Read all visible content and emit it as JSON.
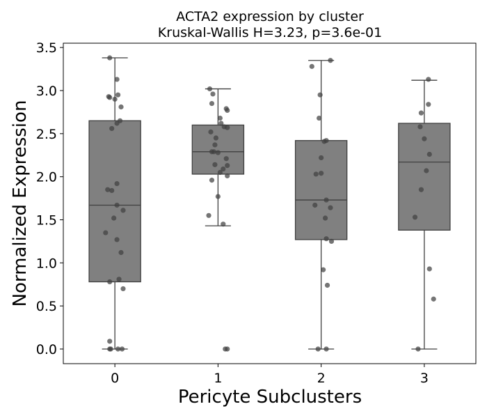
{
  "chart_data": {
    "type": "box",
    "title": "ACTA2 expression by cluster",
    "subtitle": "Kruskal-Wallis H=3.23, p=3.6e-01",
    "xlabel": "Pericyte Subclusters",
    "ylabel": "Normalized Expression",
    "categories": [
      "0",
      "1",
      "2",
      "3"
    ],
    "ylim": [
      -0.17,
      3.55
    ],
    "yticks": [
      0.0,
      0.5,
      1.0,
      1.5,
      2.0,
      2.5,
      3.0,
      3.5
    ],
    "ytick_labels": [
      "0.0",
      "0.5",
      "1.0",
      "1.5",
      "2.0",
      "2.5",
      "3.0",
      "3.5"
    ],
    "grid": false,
    "colors": {
      "box_fill": "#808080",
      "box_edge": "#3f3f3f",
      "point": "#404040"
    },
    "boxes": [
      {
        "category": "0",
        "whisker_low": 0.0,
        "q1": 0.78,
        "median": 1.67,
        "q3": 2.65,
        "whisker_high": 3.38
      },
      {
        "category": "1",
        "whisker_low": 1.43,
        "q1": 2.03,
        "median": 2.29,
        "q3": 2.6,
        "whisker_high": 3.02
      },
      {
        "category": "2",
        "whisker_low": 0.0,
        "q1": 1.27,
        "median": 1.73,
        "q3": 2.42,
        "whisker_high": 3.35
      },
      {
        "category": "3",
        "whisker_low": 0.0,
        "q1": 1.38,
        "median": 2.17,
        "q3": 2.62,
        "whisker_high": 3.12
      }
    ],
    "points": [
      {
        "category": "0",
        "values": [
          {
            "x": -0.05,
            "y": 3.38
          },
          {
            "x": 0.02,
            "y": 3.13
          },
          {
            "x": -0.06,
            "y": 2.93
          },
          {
            "x": 0.03,
            "y": 2.95
          },
          {
            "x": -0.05,
            "y": 2.92
          },
          {
            "x": 0.0,
            "y": 2.9
          },
          {
            "x": 0.06,
            "y": 2.81
          },
          {
            "x": 0.05,
            "y": 2.65
          },
          {
            "x": 0.02,
            "y": 2.62
          },
          {
            "x": -0.03,
            "y": 2.56
          },
          {
            "x": -0.07,
            "y": 1.85
          },
          {
            "x": -0.03,
            "y": 1.84
          },
          {
            "x": 0.02,
            "y": 1.92
          },
          {
            "x": 0.02,
            "y": 1.67
          },
          {
            "x": 0.08,
            "y": 1.61
          },
          {
            "x": -0.01,
            "y": 1.52
          },
          {
            "x": -0.09,
            "y": 1.35
          },
          {
            "x": 0.02,
            "y": 1.27
          },
          {
            "x": 0.06,
            "y": 1.12
          },
          {
            "x": -0.05,
            "y": 0.78
          },
          {
            "x": 0.04,
            "y": 0.81
          },
          {
            "x": 0.08,
            "y": 0.7
          },
          {
            "x": -0.05,
            "y": 0.09
          },
          {
            "x": -0.05,
            "y": 0.0
          },
          {
            "x": -0.04,
            "y": 0.0
          },
          {
            "x": 0.03,
            "y": 0.0
          },
          {
            "x": 0.07,
            "y": 0.0
          }
        ]
      },
      {
        "category": "1",
        "values": [
          {
            "x": -0.08,
            "y": 3.02
          },
          {
            "x": -0.05,
            "y": 2.96
          },
          {
            "x": -0.06,
            "y": 2.85
          },
          {
            "x": 0.08,
            "y": 2.79
          },
          {
            "x": 0.09,
            "y": 2.77
          },
          {
            "x": 0.02,
            "y": 2.68
          },
          {
            "x": 0.03,
            "y": 2.62
          },
          {
            "x": 0.06,
            "y": 2.58
          },
          {
            "x": 0.09,
            "y": 2.57
          },
          {
            "x": -0.07,
            "y": 2.52
          },
          {
            "x": -0.02,
            "y": 2.45
          },
          {
            "x": -0.03,
            "y": 2.37
          },
          {
            "x": -0.06,
            "y": 2.29
          },
          {
            "x": -0.04,
            "y": 2.29
          },
          {
            "x": 0.0,
            "y": 2.28
          },
          {
            "x": 0.08,
            "y": 2.21
          },
          {
            "x": -0.03,
            "y": 2.14
          },
          {
            "x": 0.09,
            "y": 2.13
          },
          {
            "x": 0.05,
            "y": 2.09
          },
          {
            "x": 0.02,
            "y": 2.05
          },
          {
            "x": 0.09,
            "y": 2.01
          },
          {
            "x": -0.06,
            "y": 1.96
          },
          {
            "x": 0.0,
            "y": 1.77
          },
          {
            "x": -0.09,
            "y": 1.55
          },
          {
            "x": 0.05,
            "y": 1.45
          },
          {
            "x": 0.07,
            "y": 0.0
          },
          {
            "x": 0.09,
            "y": 0.0
          }
        ]
      },
      {
        "category": "2",
        "values": [
          {
            "x": 0.09,
            "y": 3.35
          },
          {
            "x": -0.09,
            "y": 3.28
          },
          {
            "x": -0.01,
            "y": 2.95
          },
          {
            "x": -0.02,
            "y": 2.68
          },
          {
            "x": 0.05,
            "y": 2.42
          },
          {
            "x": 0.03,
            "y": 2.41
          },
          {
            "x": 0.0,
            "y": 2.22
          },
          {
            "x": -0.05,
            "y": 2.03
          },
          {
            "x": 0.0,
            "y": 2.04
          },
          {
            "x": 0.05,
            "y": 1.73
          },
          {
            "x": -0.06,
            "y": 1.67
          },
          {
            "x": 0.09,
            "y": 1.64
          },
          {
            "x": 0.04,
            "y": 1.52
          },
          {
            "x": 0.05,
            "y": 1.28
          },
          {
            "x": 0.1,
            "y": 1.25
          },
          {
            "x": 0.02,
            "y": 0.92
          },
          {
            "x": 0.06,
            "y": 0.74
          },
          {
            "x": -0.03,
            "y": 0.0
          },
          {
            "x": 0.05,
            "y": 0.0
          }
        ]
      },
      {
        "category": "3",
        "values": [
          {
            "x": 0.04,
            "y": 3.13
          },
          {
            "x": 0.04,
            "y": 2.84
          },
          {
            "x": -0.03,
            "y": 2.74
          },
          {
            "x": -0.04,
            "y": 2.58
          },
          {
            "x": 0.0,
            "y": 2.44
          },
          {
            "x": 0.05,
            "y": 2.26
          },
          {
            "x": 0.02,
            "y": 2.07
          },
          {
            "x": -0.03,
            "y": 1.85
          },
          {
            "x": -0.09,
            "y": 1.53
          },
          {
            "x": 0.05,
            "y": 0.93
          },
          {
            "x": 0.09,
            "y": 0.58
          },
          {
            "x": -0.06,
            "y": 0.0
          }
        ]
      }
    ]
  }
}
